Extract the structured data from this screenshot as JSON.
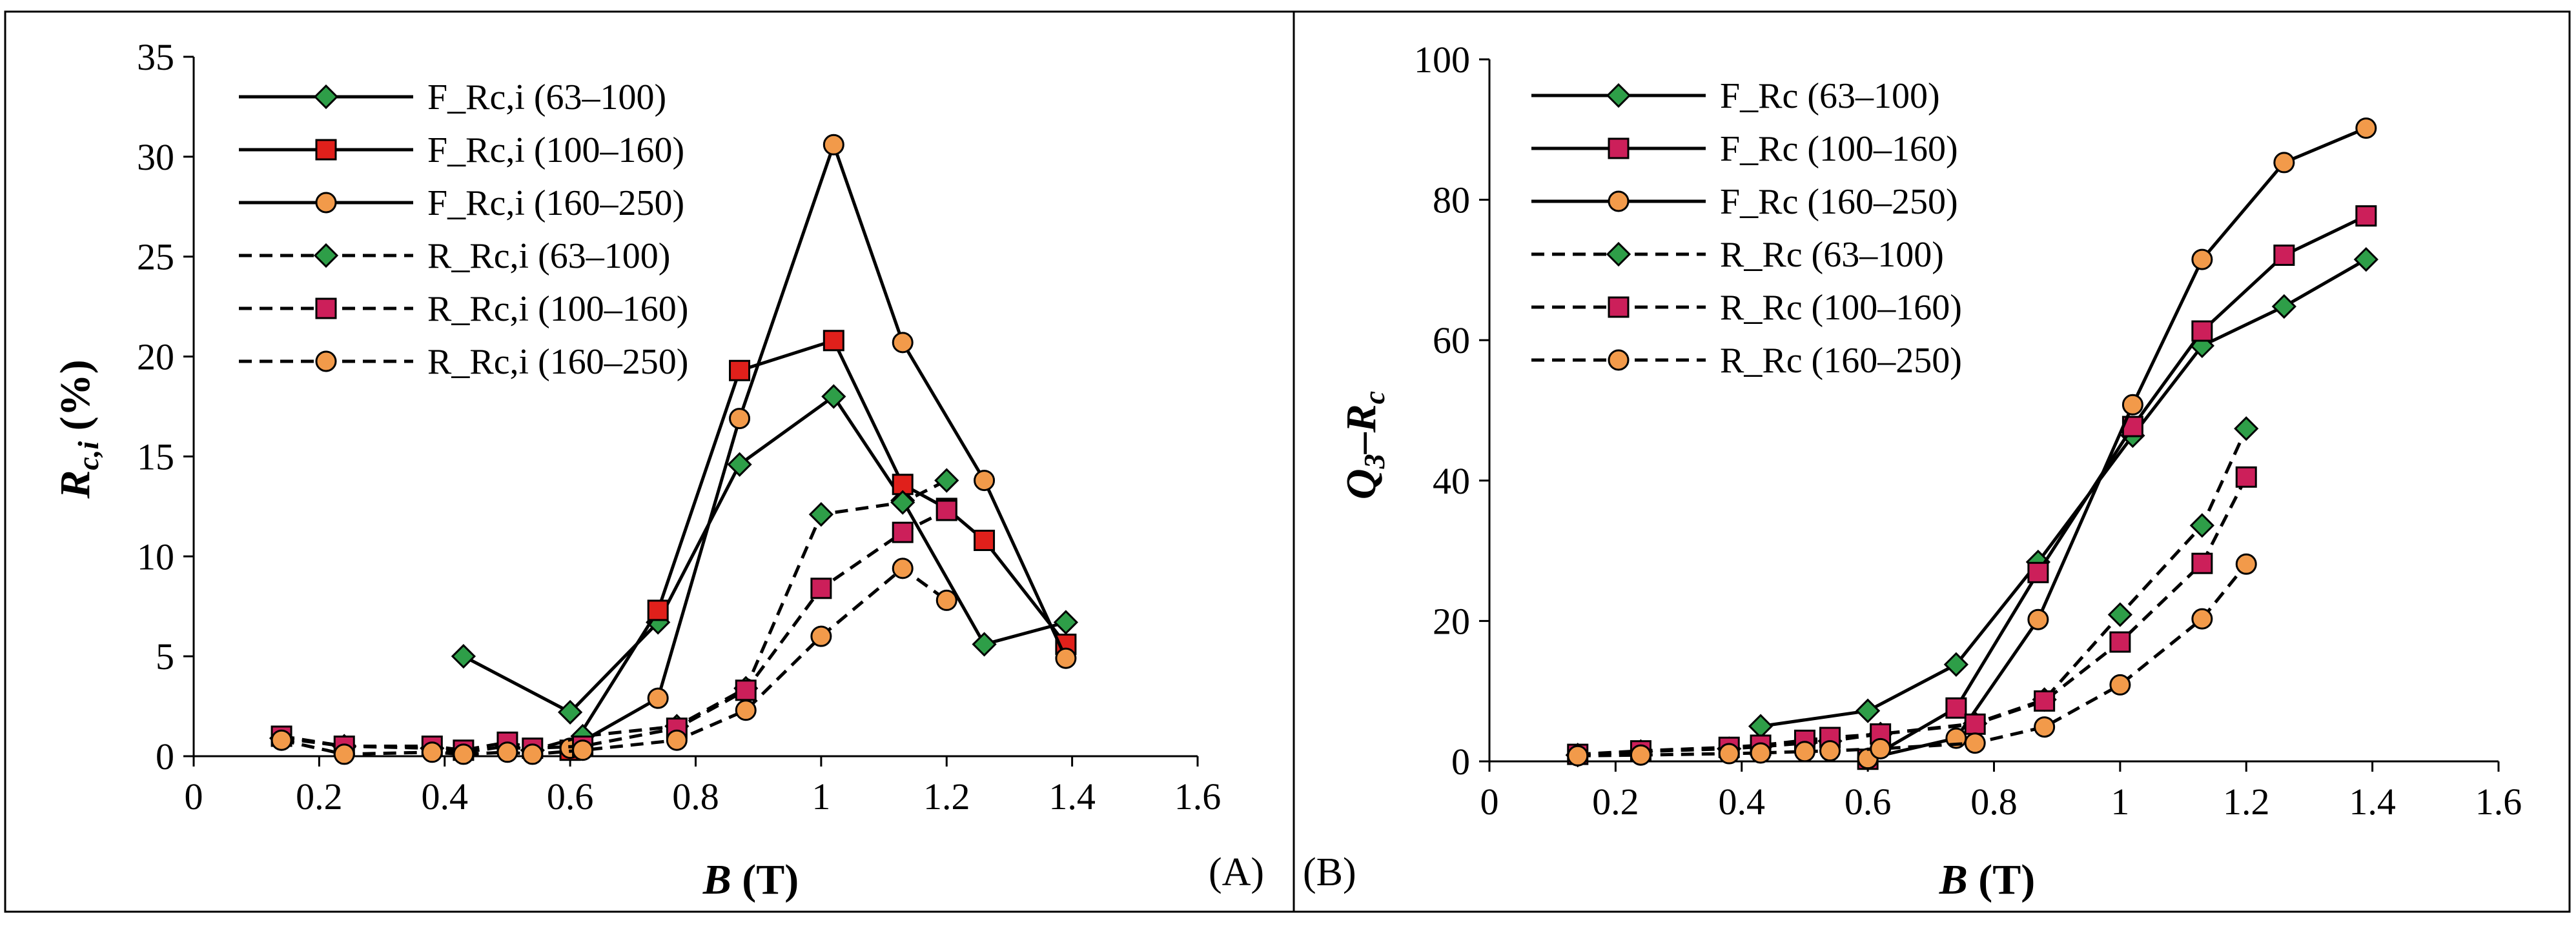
{
  "chart_data": [
    {
      "type": "line",
      "panel_label": "(A)",
      "xlabel": {
        "var": "B",
        "unit": " (T)"
      },
      "ylabel": {
        "var": "R",
        "sub": "c,i",
        "unit": " (%)"
      },
      "xlim": [
        0,
        1.6
      ],
      "ylim": [
        0,
        35
      ],
      "xticks": [
        "0",
        "0.2",
        "0.4",
        "0.6",
        "0.8",
        "1",
        "1.2",
        "1.4",
        "1.6"
      ],
      "yticks": [
        "0",
        "5",
        "10",
        "15",
        "20",
        "25",
        "30",
        "35"
      ],
      "legend_position": "top-left",
      "series": [
        {
          "name": "F_Rc,i (63–100)",
          "line": "solid",
          "marker": "diamond",
          "color": "#2e9e48",
          "x": [
            0.43,
            0.6,
            0.74,
            0.87,
            1.02,
            1.13,
            1.26,
            1.39
          ],
          "y": [
            5.0,
            2.2,
            6.7,
            14.6,
            18.0,
            12.8,
            5.6,
            6.7
          ]
        },
        {
          "name": "F_Rc,i (100–160)",
          "line": "solid",
          "marker": "square",
          "color": "#e0201b",
          "x": [
            0.6,
            0.74,
            0.87,
            1.02,
            1.13,
            1.2,
            1.26,
            1.39
          ],
          "y": [
            0.3,
            7.3,
            19.3,
            20.8,
            13.6,
            12.4,
            10.8,
            5.6
          ]
        },
        {
          "name": "F_Rc,i (160–250)",
          "line": "solid",
          "marker": "circle",
          "color": "#f29a4a",
          "x": [
            0.6,
            0.74,
            0.87,
            1.02,
            1.13,
            1.26,
            1.39
          ],
          "y": [
            0.4,
            2.9,
            16.9,
            30.6,
            20.7,
            13.8,
            4.9
          ]
        },
        {
          "name": "R_Rc,i (63–100)",
          "line": "dashed",
          "marker": "diamond",
          "color": "#2e9e48",
          "x": [
            0.14,
            0.24,
            0.38,
            0.43,
            0.5,
            0.54,
            0.62,
            0.77,
            0.88,
            1.0,
            1.13,
            1.2
          ],
          "y": [
            0.9,
            0.5,
            0.4,
            0.2,
            0.5,
            0.3,
            1.0,
            1.5,
            3.4,
            12.1,
            12.7,
            13.8
          ]
        },
        {
          "name": "R_Rc,i (100–160)",
          "line": "dashed",
          "marker": "square",
          "color": "#cc1f5a",
          "x": [
            0.14,
            0.24,
            0.38,
            0.43,
            0.5,
            0.54,
            0.62,
            0.77,
            0.88,
            1.0,
            1.13,
            1.2
          ],
          "y": [
            1.0,
            0.5,
            0.5,
            0.3,
            0.7,
            0.4,
            0.5,
            1.4,
            3.3,
            8.4,
            11.2,
            12.3
          ]
        },
        {
          "name": "R_Rc,i (160–250)",
          "line": "dashed",
          "marker": "circle",
          "color": "#f29a4a",
          "x": [
            0.14,
            0.24,
            0.38,
            0.43,
            0.5,
            0.54,
            0.62,
            0.77,
            0.88,
            1.0,
            1.13,
            1.2
          ],
          "y": [
            0.8,
            0.1,
            0.2,
            0.1,
            0.2,
            0.1,
            0.3,
            0.8,
            2.3,
            6.0,
            9.4,
            7.8
          ]
        }
      ]
    },
    {
      "type": "line",
      "panel_label": "(B)",
      "xlabel": {
        "var": "B",
        "unit": " (T)"
      },
      "ylabel": {
        "var1": "Q",
        "sub1": "3",
        "mid": "–",
        "var2": "R",
        "sub2": "c"
      },
      "xlim": [
        0,
        1.6
      ],
      "ylim": [
        0,
        100
      ],
      "xticks": [
        "0",
        "0.2",
        "0.4",
        "0.6",
        "0.8",
        "1",
        "1.2",
        "1.4",
        "1.6"
      ],
      "yticks": [
        "0",
        "20",
        "40",
        "60",
        "80",
        "100"
      ],
      "legend_position": "top-left",
      "series": [
        {
          "name": "F_Rc (63–100)",
          "line": "solid",
          "marker": "diamond",
          "color": "#2e9e48",
          "x": [
            0.43,
            0.6,
            0.74,
            0.87,
            1.02,
            1.13,
            1.26,
            1.39
          ],
          "y": [
            5.0,
            7.2,
            13.8,
            28.4,
            46.4,
            59.2,
            64.8,
            71.5
          ]
        },
        {
          "name": "F_Rc (100–160)",
          "line": "solid",
          "marker": "square",
          "color": "#cc1f5a",
          "x": [
            0.6,
            0.74,
            0.87,
            1.02,
            1.13,
            1.26,
            1.39
          ],
          "y": [
            0.3,
            7.6,
            26.9,
            47.7,
            61.3,
            72.1,
            77.7
          ]
        },
        {
          "name": "F_Rc (160–250)",
          "line": "solid",
          "marker": "circle",
          "color": "#f29a4a",
          "x": [
            0.6,
            0.74,
            0.87,
            1.02,
            1.13,
            1.26,
            1.39
          ],
          "y": [
            0.4,
            3.3,
            20.2,
            50.8,
            71.5,
            85.3,
            90.2
          ]
        },
        {
          "name": "R_Rc (63–100)",
          "line": "dashed",
          "marker": "diamond",
          "color": "#2e9e48",
          "x": [
            0.14,
            0.24,
            0.38,
            0.43,
            0.5,
            0.54,
            0.62,
            0.77,
            0.88,
            1.0,
            1.13,
            1.2
          ],
          "y": [
            0.9,
            1.4,
            1.8,
            2.1,
            2.6,
            2.9,
            3.9,
            5.4,
            8.8,
            20.9,
            33.6,
            47.4
          ]
        },
        {
          "name": "R_Rc (100–160)",
          "line": "dashed",
          "marker": "square",
          "color": "#cc1f5a",
          "x": [
            0.14,
            0.24,
            0.38,
            0.43,
            0.5,
            0.54,
            0.62,
            0.77,
            0.88,
            1.0,
            1.13,
            1.2
          ],
          "y": [
            1.0,
            1.5,
            2.0,
            2.3,
            3.0,
            3.4,
            3.9,
            5.3,
            8.6,
            17.0,
            28.2,
            40.5
          ]
        },
        {
          "name": "R_Rc (160–250)",
          "line": "dashed",
          "marker": "circle",
          "color": "#f29a4a",
          "x": [
            0.14,
            0.24,
            0.38,
            0.43,
            0.5,
            0.54,
            0.62,
            0.77,
            0.88,
            1.0,
            1.13,
            1.2
          ],
          "y": [
            0.8,
            0.9,
            1.1,
            1.2,
            1.4,
            1.5,
            1.8,
            2.6,
            4.9,
            10.9,
            20.3,
            28.1
          ]
        }
      ]
    }
  ]
}
